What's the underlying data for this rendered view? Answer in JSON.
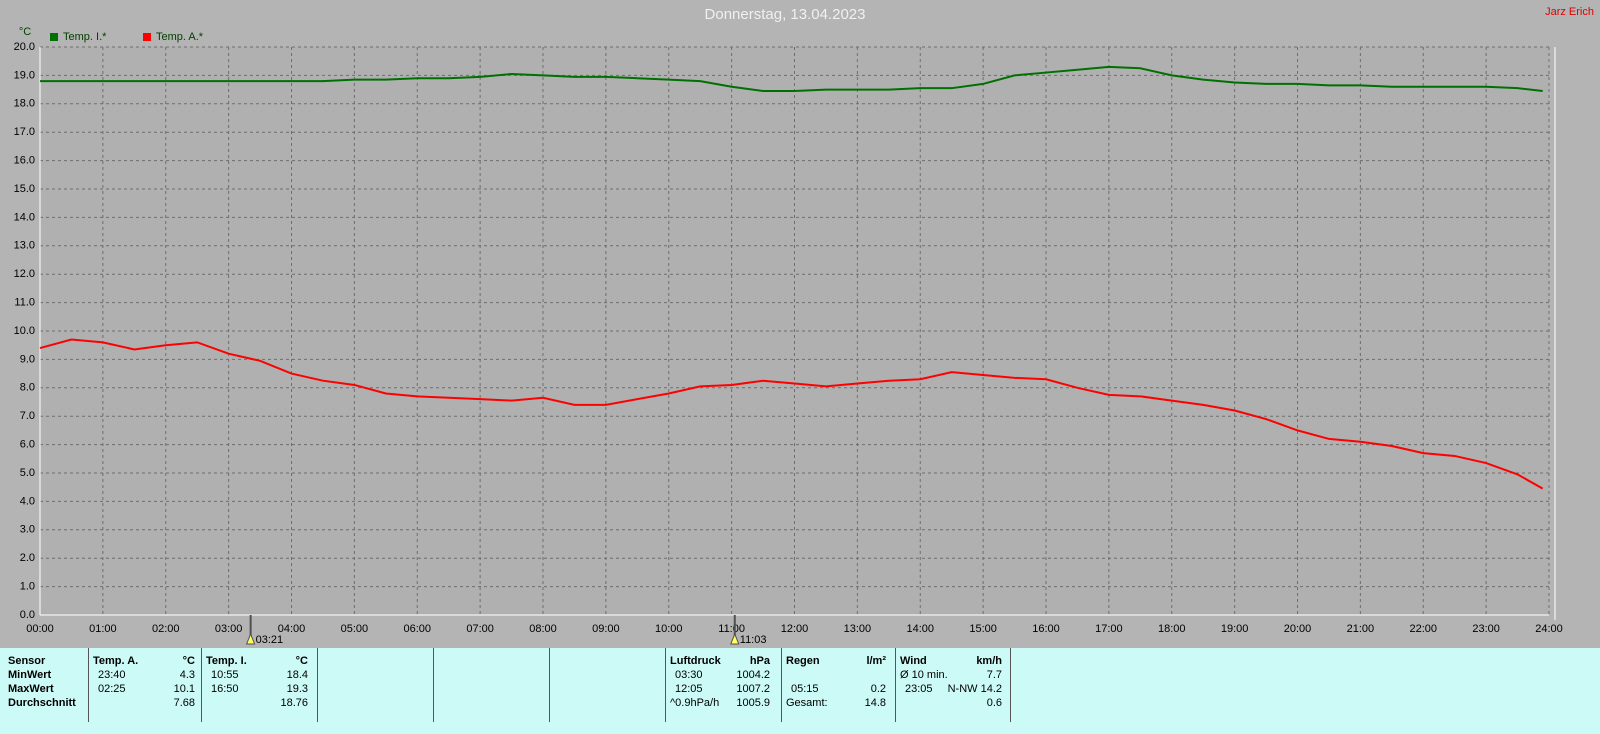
{
  "chart_data": {
    "type": "line",
    "title": "Donnerstag, 13.04.2023",
    "author": "Jarz Erich",
    "ylabel": "°C",
    "legend": "top-left",
    "grid": true,
    "xlim": [
      0,
      24
    ],
    "ylim": [
      0,
      20
    ],
    "xticks": [
      {
        "value": 0,
        "label": "00:00"
      },
      {
        "value": 1,
        "label": "01:00"
      },
      {
        "value": 2,
        "label": "02:00"
      },
      {
        "value": 3,
        "label": "03:00"
      },
      {
        "value": 4,
        "label": "04:00"
      },
      {
        "value": 5,
        "label": "05:00"
      },
      {
        "value": 6,
        "label": "06:00"
      },
      {
        "value": 7,
        "label": "07:00"
      },
      {
        "value": 8,
        "label": "08:00"
      },
      {
        "value": 9,
        "label": "09:00"
      },
      {
        "value": 10,
        "label": "10:00"
      },
      {
        "value": 11,
        "label": "11:00"
      },
      {
        "value": 12,
        "label": "12:00"
      },
      {
        "value": 13,
        "label": "13:00"
      },
      {
        "value": 14,
        "label": "14:00"
      },
      {
        "value": 15,
        "label": "15:00"
      },
      {
        "value": 16,
        "label": "16:00"
      },
      {
        "value": 17,
        "label": "17:00"
      },
      {
        "value": 18,
        "label": "18:00"
      },
      {
        "value": 19,
        "label": "19:00"
      },
      {
        "value": 20,
        "label": "20:00"
      },
      {
        "value": 21,
        "label": "21:00"
      },
      {
        "value": 22,
        "label": "22:00"
      },
      {
        "value": 23,
        "label": "23:00"
      },
      {
        "value": 24,
        "label": "24:00"
      }
    ],
    "yticks": [
      {
        "value": 0,
        "label": "0.0"
      },
      {
        "value": 1,
        "label": "1.0"
      },
      {
        "value": 2,
        "label": "2.0"
      },
      {
        "value": 3,
        "label": "3.0"
      },
      {
        "value": 4,
        "label": "4.0"
      },
      {
        "value": 5,
        "label": "5.0"
      },
      {
        "value": 6,
        "label": "6.0"
      },
      {
        "value": 7,
        "label": "7.0"
      },
      {
        "value": 8,
        "label": "8.0"
      },
      {
        "value": 9,
        "label": "9.0"
      },
      {
        "value": 10,
        "label": "10.0"
      },
      {
        "value": 11,
        "label": "11.0"
      },
      {
        "value": 12,
        "label": "12.0"
      },
      {
        "value": 13,
        "label": "13.0"
      },
      {
        "value": 14,
        "label": "14.0"
      },
      {
        "value": 15,
        "label": "15.0"
      },
      {
        "value": 16,
        "label": "16.0"
      },
      {
        "value": 17,
        "label": "17.0"
      },
      {
        "value": 18,
        "label": "18.0"
      },
      {
        "value": 19,
        "label": "19.0"
      },
      {
        "value": 20,
        "label": "20.0"
      }
    ],
    "x": [
      0,
      0.5,
      1,
      1.5,
      2,
      2.5,
      3,
      3.5,
      4,
      4.5,
      5,
      5.5,
      6,
      6.5,
      7,
      7.5,
      8,
      8.5,
      9,
      9.5,
      10,
      10.5,
      11,
      11.5,
      12,
      12.5,
      13,
      13.5,
      14,
      14.5,
      15,
      15.5,
      16,
      16.5,
      17,
      17.5,
      18,
      18.5,
      19,
      19.5,
      20,
      20.5,
      21,
      21.5,
      22,
      22.5,
      23,
      23.5,
      23.9
    ],
    "series": [
      {
        "name": "Temp. I.*",
        "color": "#007000",
        "values": [
          18.8,
          18.8,
          18.8,
          18.8,
          18.8,
          18.8,
          18.8,
          18.8,
          18.8,
          18.8,
          18.85,
          18.85,
          18.9,
          18.9,
          18.95,
          19.05,
          19.0,
          18.95,
          18.95,
          18.9,
          18.85,
          18.8,
          18.6,
          18.45,
          18.45,
          18.5,
          18.5,
          18.5,
          18.55,
          18.55,
          18.7,
          19.0,
          19.1,
          19.2,
          19.3,
          19.25,
          19.0,
          18.85,
          18.75,
          18.7,
          18.7,
          18.65,
          18.65,
          18.6,
          18.6,
          18.6,
          18.6,
          18.55,
          18.45
        ]
      },
      {
        "name": "Temp. A.*",
        "color": "#ff0000",
        "values": [
          9.4,
          9.7,
          9.6,
          9.35,
          9.5,
          9.6,
          9.2,
          8.95,
          8.5,
          8.25,
          8.1,
          7.8,
          7.7,
          7.65,
          7.6,
          7.55,
          7.65,
          7.4,
          7.4,
          7.6,
          7.8,
          8.05,
          8.1,
          8.25,
          8.15,
          8.05,
          8.15,
          8.25,
          8.3,
          8.55,
          8.45,
          8.35,
          8.3,
          8.0,
          7.75,
          7.7,
          7.55,
          7.4,
          7.2,
          6.9,
          6.5,
          6.2,
          6.1,
          5.95,
          5.7,
          5.6,
          5.35,
          4.95,
          4.45
        ]
      }
    ],
    "annotations": [
      {
        "x": 3.35,
        "label": "03:21"
      },
      {
        "x": 11.05,
        "label": "11:03"
      }
    ]
  },
  "table": {
    "row_labels": [
      "Sensor",
      "MinWert",
      "MaxWert",
      "Durchschnitt"
    ],
    "groups": [
      {
        "name": "Temp. A.",
        "unit": "°C",
        "min": [
          "23:40",
          "4.3"
        ],
        "max": [
          "02:25",
          "10.1"
        ],
        "avg": [
          "7.68"
        ]
      },
      {
        "name": "Temp. I.",
        "unit": "°C",
        "min": [
          "10:55",
          "18.4"
        ],
        "max": [
          "16:50",
          "19.3"
        ],
        "avg": [
          "18.76"
        ]
      },
      {
        "name": "Luftdruck",
        "unit": "hPa",
        "min": [
          "03:30",
          "1004.2"
        ],
        "max": [
          "12:05",
          "1007.2"
        ],
        "avg": [
          "^0.9hPa/h",
          "1005.9"
        ]
      },
      {
        "name": "Regen",
        "unit": "l/m²",
        "max": [
          "05:15",
          "0.2"
        ],
        "avg": [
          "Gesamt:",
          "14.8"
        ]
      },
      {
        "name": "Wind",
        "unit": "km/h",
        "min": [
          "Ø 10 min.",
          "7.7"
        ],
        "max": [
          "23:05",
          "N-NW 14.2"
        ],
        "avg": [
          "0.6"
        ]
      }
    ]
  }
}
